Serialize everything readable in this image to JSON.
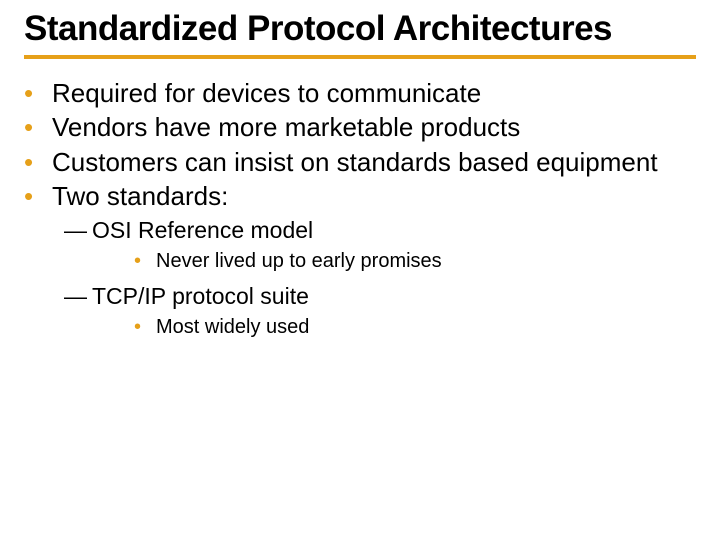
{
  "colors": {
    "accent": "#e6a019",
    "rule": "#e6a019",
    "text": "#000000",
    "background": "#ffffff"
  },
  "typography": {
    "title_font": "Arial Black",
    "body_font": "Verdana",
    "title_fontsize_pt": 28,
    "lvl1_fontsize_pt": 20,
    "lvl2_fontsize_pt": 18,
    "lvl3_fontsize_pt": 15
  },
  "title": "Standardized Protocol Architectures",
  "bullets": {
    "b1": "Required for devices to communicate",
    "b2": "Vendors have more marketable products",
    "b3": "Customers can insist on standards based equipment",
    "b4": "Two standards:",
    "b4_s1": "OSI Reference model",
    "b4_s1_d1": "Never lived up to early promises",
    "b4_s2": "TCP/IP protocol suite",
    "b4_s2_d1": "Most widely used"
  },
  "glyphs": {
    "bullet_dot": "•",
    "em_dash": "—"
  }
}
